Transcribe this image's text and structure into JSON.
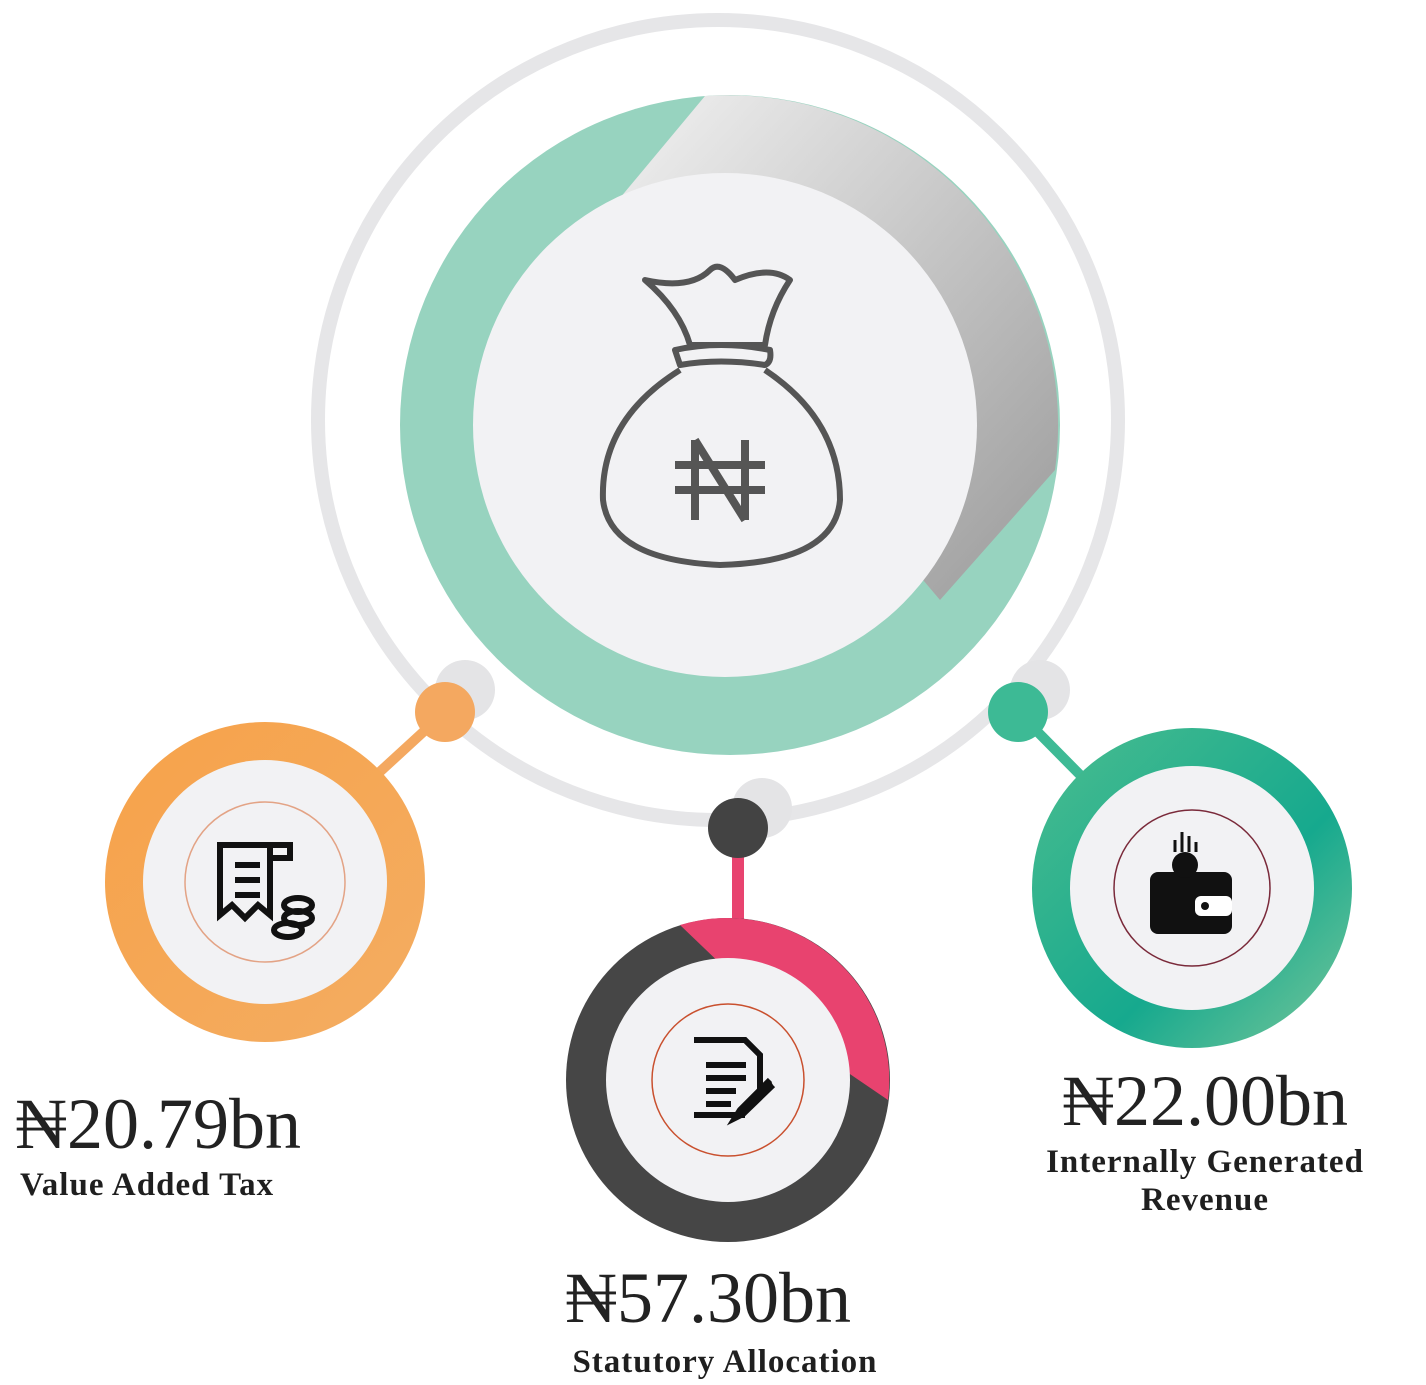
{
  "items": [
    {
      "amount": "₦20.79bn",
      "label": [
        "Value Added Tax"
      ]
    },
    {
      "amount": "₦57.30bn",
      "label": [
        "Statutory Allocation"
      ]
    },
    {
      "amount": "₦22.00bn",
      "label": [
        "Internally Generated",
        "Revenue"
      ]
    }
  ]
}
